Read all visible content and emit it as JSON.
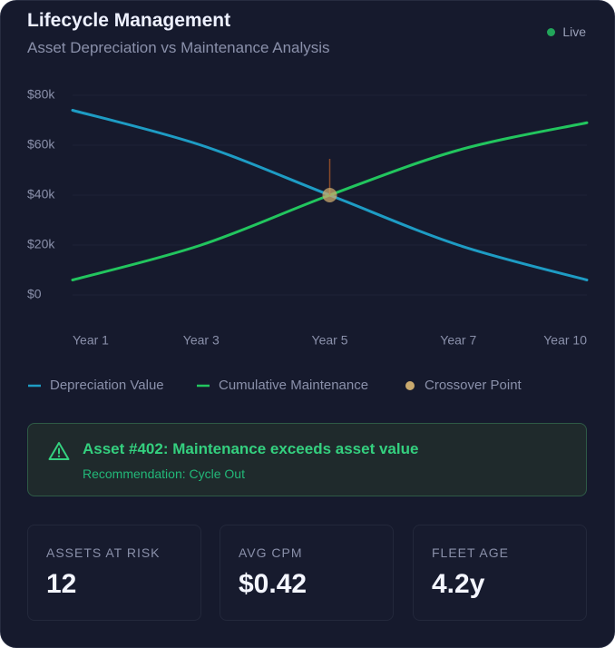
{
  "header": {
    "title": "Lifecycle Management",
    "subtitle": "Asset Depreciation vs Maintenance Analysis",
    "status": "Live"
  },
  "chart_data": {
    "type": "line",
    "categories": [
      "Year 1",
      "Year 3",
      "Year 5",
      "Year 7",
      "Year 10"
    ],
    "series": [
      {
        "name": "Depreciation Value",
        "color": "#1e9cc4",
        "values": [
          74,
          60,
          40,
          20,
          6
        ]
      },
      {
        "name": "Cumulative Maintenance",
        "color": "#22c55e",
        "values": [
          6,
          20,
          40,
          58,
          69
        ]
      }
    ],
    "crossover": {
      "name": "Crossover Point",
      "category": "Year 5",
      "value": 40,
      "color": "#c9a96e"
    },
    "ylim": [
      0,
      80
    ],
    "yticks": [
      {
        "value": 0,
        "label": "$0"
      },
      {
        "value": 20,
        "label": "$20k"
      },
      {
        "value": 40,
        "label": "$40k"
      },
      {
        "value": 60,
        "label": "$60k"
      },
      {
        "value": 80,
        "label": "$80k"
      }
    ],
    "grid": true,
    "legend": "bottom"
  },
  "alert": {
    "title": "Asset #402: Maintenance exceeds asset value",
    "recommendation": "Recommendation: Cycle Out"
  },
  "stats": [
    {
      "label": "ASSETS AT RISK",
      "value": "12"
    },
    {
      "label": "AVG CPM",
      "value": "$0.42"
    },
    {
      "label": "FLEET AGE",
      "value": "4.2y"
    }
  ]
}
